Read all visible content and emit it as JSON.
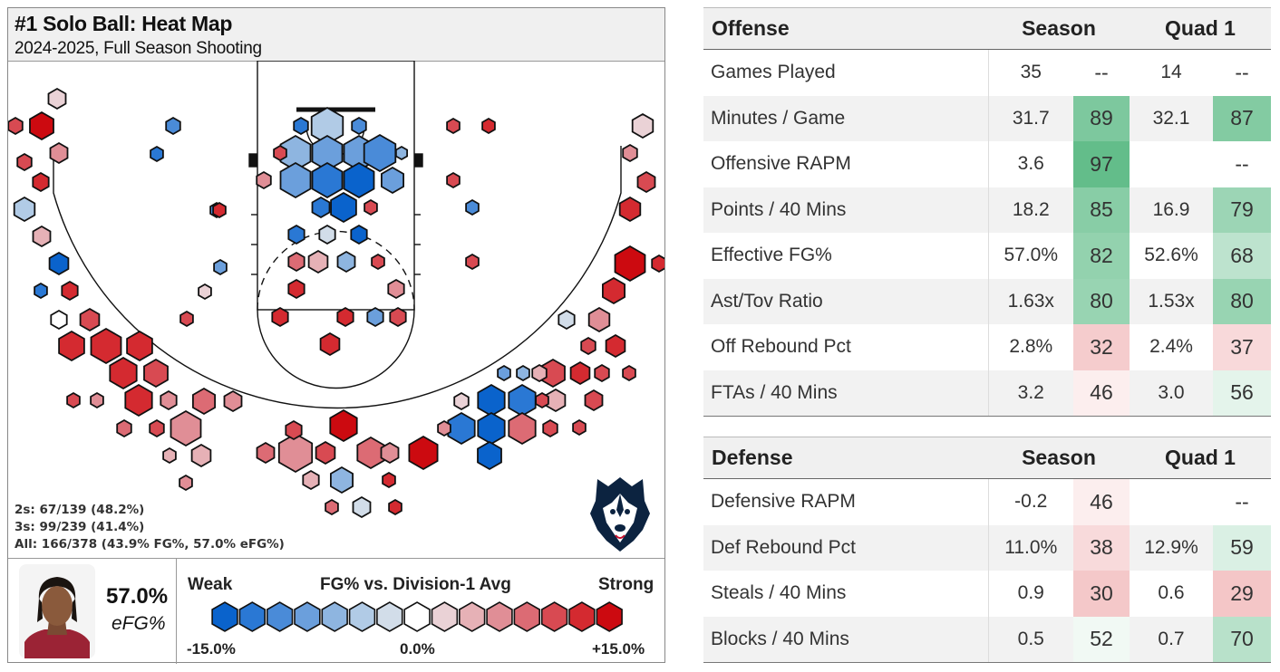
{
  "header": {
    "title": "#1 Solo Ball: Heat Map",
    "subtitle": "2024-2025, Full Season Shooting"
  },
  "shot_summary": {
    "twos": "2s: 67/139 (48.2%)",
    "threes": "3s: 99/239 (41.4%)",
    "all": "All: 166/378 (43.9% FG%, 57.0% eFG%)"
  },
  "player": {
    "efg_value": "57.0%",
    "efg_label": "eFG%"
  },
  "legend": {
    "title": "FG% vs. Division-1 Avg",
    "weak": "Weak",
    "strong": "Strong",
    "low": "-15.0%",
    "mid": "0.0%",
    "high": "+15.0%",
    "colors": [
      "#0a63cc",
      "#2a78d4",
      "#4a8bd8",
      "#6b9fdc",
      "#8eb5e0",
      "#b1cbe6",
      "#d2dde9",
      "#ffffff",
      "#ead2d6",
      "#e6b1b6",
      "#e08e96",
      "#dc6b74",
      "#d84a52",
      "#d42a30",
      "#cc0a10"
    ]
  },
  "chart_data": {
    "type": "heatmap",
    "title": "#1 Solo Ball: Heat Map",
    "subtitle": "2024-2025, Full Season Shooting",
    "color_scale": {
      "metric": "FG% vs. Division-1 Avg",
      "min": -15.0,
      "max": 15.0
    },
    "summary": {
      "twos": [
        67,
        139,
        48.2
      ],
      "threes": [
        99,
        239,
        41.4
      ],
      "all_fg": [
        166,
        378,
        43.9
      ],
      "efg": 57.0
    }
  },
  "offense": {
    "headers": [
      "Offense",
      "Season",
      "Quad 1"
    ],
    "rows": [
      {
        "label": "Games Played",
        "season": "35",
        "season_pct": "--",
        "q1": "14",
        "q1_pct": "--"
      },
      {
        "label": "Minutes / Game",
        "season": "31.7",
        "season_pct": "89",
        "q1": "32.1",
        "q1_pct": "87"
      },
      {
        "label": "Offensive RAPM",
        "season": "3.6",
        "season_pct": "97",
        "q1": "",
        "q1_pct": "--"
      },
      {
        "label": "Points / 40 Mins",
        "season": "18.2",
        "season_pct": "85",
        "q1": "16.9",
        "q1_pct": "79"
      },
      {
        "label": "Effective FG%",
        "season": "57.0%",
        "season_pct": "82",
        "q1": "52.6%",
        "q1_pct": "68"
      },
      {
        "label": "Ast/Tov Ratio",
        "season": "1.63x",
        "season_pct": "80",
        "q1": "1.53x",
        "q1_pct": "80"
      },
      {
        "label": "Off Rebound Pct",
        "season": "2.8%",
        "season_pct": "32",
        "q1": "2.4%",
        "q1_pct": "37"
      },
      {
        "label": "FTAs / 40 Mins",
        "season": "3.2",
        "season_pct": "46",
        "q1": "3.0",
        "q1_pct": "56"
      }
    ]
  },
  "defense": {
    "headers": [
      "Defense",
      "Season",
      "Quad 1"
    ],
    "rows": [
      {
        "label": "Defensive RAPM",
        "season": "-0.2",
        "season_pct": "46",
        "q1": "",
        "q1_pct": "--"
      },
      {
        "label": "Def Rebound Pct",
        "season": "11.0%",
        "season_pct": "38",
        "q1": "12.9%",
        "q1_pct": "59"
      },
      {
        "label": "Steals / 40 Mins",
        "season": "0.9",
        "season_pct": "30",
        "q1": "0.6",
        "q1_pct": "29"
      },
      {
        "label": "Blocks / 40 Mins",
        "season": "0.5",
        "season_pct": "52",
        "q1": "0.7",
        "q1_pct": "70"
      }
    ]
  }
}
